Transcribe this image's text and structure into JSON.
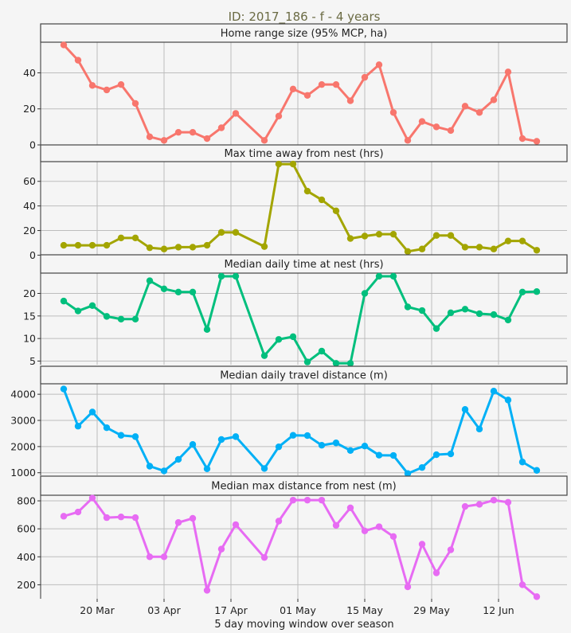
{
  "title": "ID: 2017_186 - f - 4 years",
  "xlabel": "5 day moving window over season",
  "chart_data": {
    "type": "line",
    "x_dates": [
      "2017-03-13",
      "2017-03-16",
      "2017-03-19",
      "2017-03-22",
      "2017-03-25",
      "2017-03-28",
      "2017-03-31",
      "2017-04-03",
      "2017-04-06",
      "2017-04-09",
      "2017-04-12",
      "2017-04-15",
      "2017-04-18",
      "2017-04-24",
      "2017-04-27",
      "2017-04-30",
      "2017-05-03",
      "2017-05-06",
      "2017-05-09",
      "2017-05-12",
      "2017-05-15",
      "2017-05-18",
      "2017-05-21",
      "2017-05-24",
      "2017-05-27",
      "2017-05-30",
      "2017-06-02",
      "2017-06-05",
      "2017-06-08",
      "2017-06-11",
      "2017-06-14",
      "2017-06-17",
      "2017-06-20"
    ],
    "x_ticks": [
      {
        "date": "2017-03-20",
        "label": "20 Mar"
      },
      {
        "date": "2017-04-03",
        "label": "03 Apr"
      },
      {
        "date": "2017-04-17",
        "label": "17 Apr"
      },
      {
        "date": "2017-05-01",
        "label": "01 May"
      },
      {
        "date": "2017-05-15",
        "label": "15 May"
      },
      {
        "date": "2017-05-29",
        "label": "29 May"
      },
      {
        "date": "2017-06-12",
        "label": "12 Jun"
      }
    ],
    "panels": [
      {
        "name": "Home range size (95% MCP, ha)",
        "color": "#f8766d",
        "ylim": [
          0,
          57
        ],
        "yticks": [
          0,
          20,
          40
        ],
        "values": [
          55.5,
          47,
          33,
          30.5,
          33.5,
          23,
          4.5,
          2.5,
          7,
          7,
          3.5,
          9.5,
          17.5,
          2.5,
          16,
          31,
          27.5,
          33.5,
          33.5,
          24.5,
          37.5,
          44.5,
          18,
          2.5,
          13,
          10,
          8,
          21.5,
          18,
          25,
          40.5,
          3.5,
          2
        ]
      },
      {
        "name": "Max time away from nest (hrs)",
        "color": "#a3a500",
        "ylim": [
          -1,
          76
        ],
        "yticks": [
          0,
          20,
          40,
          60
        ],
        "values": [
          8,
          8,
          8,
          8,
          14,
          14,
          6,
          5,
          6.5,
          6.5,
          8,
          18.5,
          18.5,
          7,
          74,
          74,
          52,
          45,
          36,
          13.5,
          15.5,
          17,
          17,
          3,
          5,
          16,
          16,
          6.5,
          6.5,
          5,
          11.5,
          11.5,
          4
        ]
      },
      {
        "name": "Median daily time at nest (hrs)",
        "color": "#00bf7d",
        "ylim": [
          4.2,
          24.5
        ],
        "yticks": [
          5,
          10,
          15,
          20
        ],
        "values": [
          18.3,
          16.1,
          17.3,
          14.9,
          14.3,
          14.3,
          22.8,
          21,
          20.3,
          20.3,
          12,
          23.8,
          23.8,
          6.2,
          9.8,
          10.4,
          4.8,
          7.2,
          4.5,
          4.5,
          20,
          23.8,
          23.8,
          17,
          16.2,
          12.2,
          15.7,
          16.5,
          15.5,
          15.3,
          14.1,
          20.3,
          20.4
        ]
      },
      {
        "name": "Median daily travel distance (m)",
        "color": "#00b0f6",
        "ylim": [
          900,
          4400
        ],
        "yticks": [
          1000,
          2000,
          3000,
          4000
        ],
        "values": [
          4200,
          2780,
          3320,
          2720,
          2430,
          2380,
          1250,
          1070,
          1510,
          2080,
          1150,
          2270,
          2380,
          1160,
          1990,
          2430,
          2420,
          2050,
          2140,
          1850,
          2020,
          1670,
          1660,
          970,
          1200,
          1690,
          1720,
          3420,
          2670,
          4120,
          3780,
          1410,
          1090
        ]
      },
      {
        "name": "Median max distance from nest (m)",
        "color": "#e76bf3",
        "ylim": [
          100,
          840
        ],
        "yticks": [
          200,
          400,
          600,
          800
        ],
        "values": [
          690,
          720,
          820,
          680,
          685,
          680,
          400,
          400,
          645,
          675,
          160,
          455,
          630,
          395,
          655,
          805,
          805,
          805,
          625,
          750,
          585,
          615,
          545,
          185,
          490,
          285,
          450,
          760,
          775,
          805,
          790,
          200,
          115
        ]
      }
    ]
  }
}
